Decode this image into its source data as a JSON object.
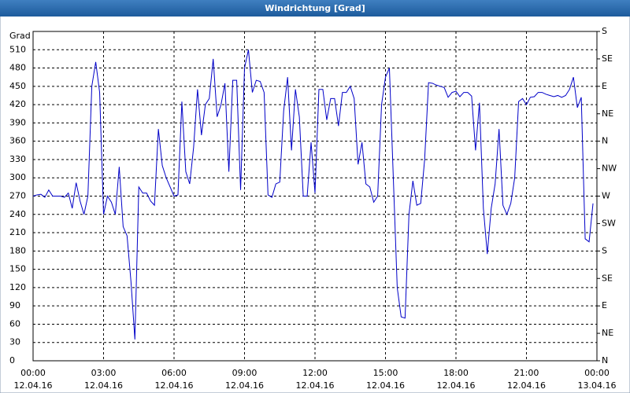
{
  "chart_data": {
    "type": "line",
    "title": "Windrichtung [Grad]",
    "y_label": "Grad",
    "x": [
      0,
      10,
      20,
      30,
      40,
      50,
      60,
      70,
      80,
      90,
      100,
      110,
      120,
      130,
      140,
      150,
      160,
      170,
      180,
      190,
      200,
      210,
      220,
      230,
      240,
      250,
      260,
      270,
      280,
      290,
      300,
      310,
      320,
      330,
      340,
      350,
      360,
      370,
      380,
      390,
      400,
      410,
      420,
      430,
      440,
      450,
      460,
      470,
      480,
      490,
      500,
      510,
      520,
      530,
      540,
      550,
      560,
      570,
      580,
      590,
      600,
      610,
      620,
      630,
      640,
      650,
      660,
      670,
      680,
      690,
      700,
      710,
      720,
      730,
      740,
      750,
      760,
      770,
      780,
      790,
      800,
      810,
      820,
      830,
      840,
      850,
      860,
      870,
      880,
      890,
      900,
      910,
      920,
      930,
      940,
      950,
      960,
      970,
      980,
      990,
      1000,
      1010,
      1020,
      1030,
      1040,
      1050,
      1060,
      1070,
      1080,
      1090,
      1100,
      1110,
      1120,
      1130,
      1140,
      1150,
      1160,
      1170,
      1180,
      1190,
      1200,
      1210,
      1220,
      1230,
      1240,
      1250,
      1260,
      1270,
      1280,
      1290,
      1300,
      1310,
      1320,
      1330,
      1340,
      1350,
      1360,
      1370,
      1380,
      1390,
      1400,
      1410,
      1420,
      1430
    ],
    "series": [
      {
        "color": "#0000c8",
        "values": [
          270,
          272,
          273,
          268,
          280,
          270,
          270,
          270,
          268,
          275,
          250,
          292,
          262,
          240,
          270,
          450,
          490,
          440,
          240,
          270,
          260,
          240,
          318,
          220,
          205,
          130,
          35,
          285,
          275,
          275,
          262,
          255,
          380,
          320,
          300,
          285,
          270,
          272,
          425,
          310,
          290,
          350,
          445,
          370,
          420,
          430,
          495,
          400,
          420,
          455,
          310,
          460,
          460,
          280,
          480,
          510,
          440,
          460,
          458,
          440,
          272,
          268,
          290,
          293,
          410,
          465,
          345,
          445,
          400,
          270,
          270,
          358,
          275,
          445,
          445,
          395,
          430,
          430,
          385,
          440,
          440,
          450,
          430,
          322,
          358,
          290,
          285,
          260,
          270,
          420,
          465,
          480,
          300,
          120,
          72,
          70,
          240,
          295,
          255,
          258,
          330,
          456,
          455,
          452,
          450,
          448,
          432,
          440,
          442,
          433,
          440,
          440,
          434,
          345,
          423,
          250,
          175,
          250,
          290,
          380,
          255,
          240,
          258,
          300,
          425,
          430,
          420,
          432,
          433,
          440,
          440,
          437,
          435,
          433,
          435,
          432,
          435,
          445,
          465,
          415,
          432,
          200,
          195,
          258
        ]
      }
    ],
    "xlim": [
      0,
      1440
    ],
    "xticks": [
      {
        "value": 0,
        "label": "00:00 12.04.16"
      },
      {
        "value": 180,
        "label": "03:00 12.04.16"
      },
      {
        "value": 360,
        "label": "06:00 12.04.16"
      },
      {
        "value": 540,
        "label": "09:00 12.04.16"
      },
      {
        "value": 720,
        "label": "12:00 12.04.16"
      },
      {
        "value": 900,
        "label": "15:00 12.04.16"
      },
      {
        "value": 1080,
        "label": "18:00 12.04.16"
      },
      {
        "value": 1260,
        "label": "21:00 12.04.16"
      },
      {
        "value": 1440,
        "label": "00:00 13.04.16"
      }
    ],
    "ylim": [
      0,
      540
    ],
    "yticks": [
      0,
      30,
      60,
      90,
      120,
      150,
      180,
      210,
      240,
      270,
      300,
      330,
      360,
      390,
      420,
      450,
      480,
      510
    ],
    "y2lim": [
      0,
      540
    ],
    "y2ticks": [
      {
        "value": 0,
        "label": "N"
      },
      {
        "value": 45,
        "label": "NE"
      },
      {
        "value": 90,
        "label": "E"
      },
      {
        "value": 135,
        "label": "SE"
      },
      {
        "value": 180,
        "label": "S"
      },
      {
        "value": 225,
        "label": "SW"
      },
      {
        "value": 270,
        "label": "W"
      },
      {
        "value": 315,
        "label": "NW"
      },
      {
        "value": 360,
        "label": "N"
      },
      {
        "value": 405,
        "label": "NE"
      },
      {
        "value": 450,
        "label": "E"
      },
      {
        "value": 495,
        "label": "SE"
      },
      {
        "value": 540,
        "label": "S"
      }
    ],
    "grid": true
  }
}
